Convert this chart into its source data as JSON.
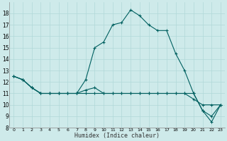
{
  "title": "",
  "xlabel": "Humidex (Indice chaleur)",
  "ylabel": "",
  "background_color": "#ceeaea",
  "grid_color": "#b0d8d8",
  "line_color": "#006060",
  "xlim": [
    -0.5,
    23.5
  ],
  "ylim": [
    8,
    19
  ],
  "yticks": [
    8,
    9,
    10,
    11,
    12,
    13,
    14,
    15,
    16,
    17,
    18
  ],
  "xticks": [
    0,
    1,
    2,
    3,
    4,
    5,
    6,
    7,
    8,
    9,
    10,
    11,
    12,
    13,
    14,
    15,
    16,
    17,
    18,
    19,
    20,
    21,
    22,
    23
  ],
  "series": [
    {
      "x": [
        0,
        1,
        2,
        3,
        4,
        5,
        6,
        7,
        8,
        9,
        10,
        11,
        12,
        13,
        14,
        15,
        16,
        17,
        18,
        19,
        20,
        21,
        22,
        23
      ],
      "y": [
        12.5,
        12.2,
        11.5,
        11.0,
        11.0,
        11.0,
        11.0,
        11.0,
        12.2,
        15.0,
        15.5,
        17.0,
        17.2,
        18.3,
        17.8,
        17.0,
        16.5,
        16.5,
        14.5,
        13.0,
        11.0,
        9.5,
        9.0,
        10.0
      ]
    },
    {
      "x": [
        0,
        1,
        2,
        3,
        4,
        5,
        6,
        7,
        8,
        9,
        10,
        11,
        12,
        13,
        14,
        15,
        16,
        17,
        18,
        19,
        20,
        21,
        22,
        23
      ],
      "y": [
        12.5,
        12.2,
        11.5,
        11.0,
        11.0,
        11.0,
        11.0,
        11.0,
        11.3,
        11.5,
        11.0,
        11.0,
        11.0,
        11.0,
        11.0,
        11.0,
        11.0,
        11.0,
        11.0,
        11.0,
        11.0,
        9.5,
        8.5,
        10.0
      ]
    },
    {
      "x": [
        0,
        1,
        2,
        3,
        4,
        5,
        6,
        7,
        8,
        9,
        10,
        11,
        12,
        13,
        14,
        15,
        16,
        17,
        18,
        19,
        20,
        21,
        22,
        23
      ],
      "y": [
        12.5,
        12.2,
        11.5,
        11.0,
        11.0,
        11.0,
        11.0,
        11.0,
        11.0,
        11.0,
        11.0,
        11.0,
        11.0,
        11.0,
        11.0,
        11.0,
        11.0,
        11.0,
        11.0,
        11.0,
        10.5,
        10.0,
        10.0,
        10.0
      ]
    }
  ]
}
